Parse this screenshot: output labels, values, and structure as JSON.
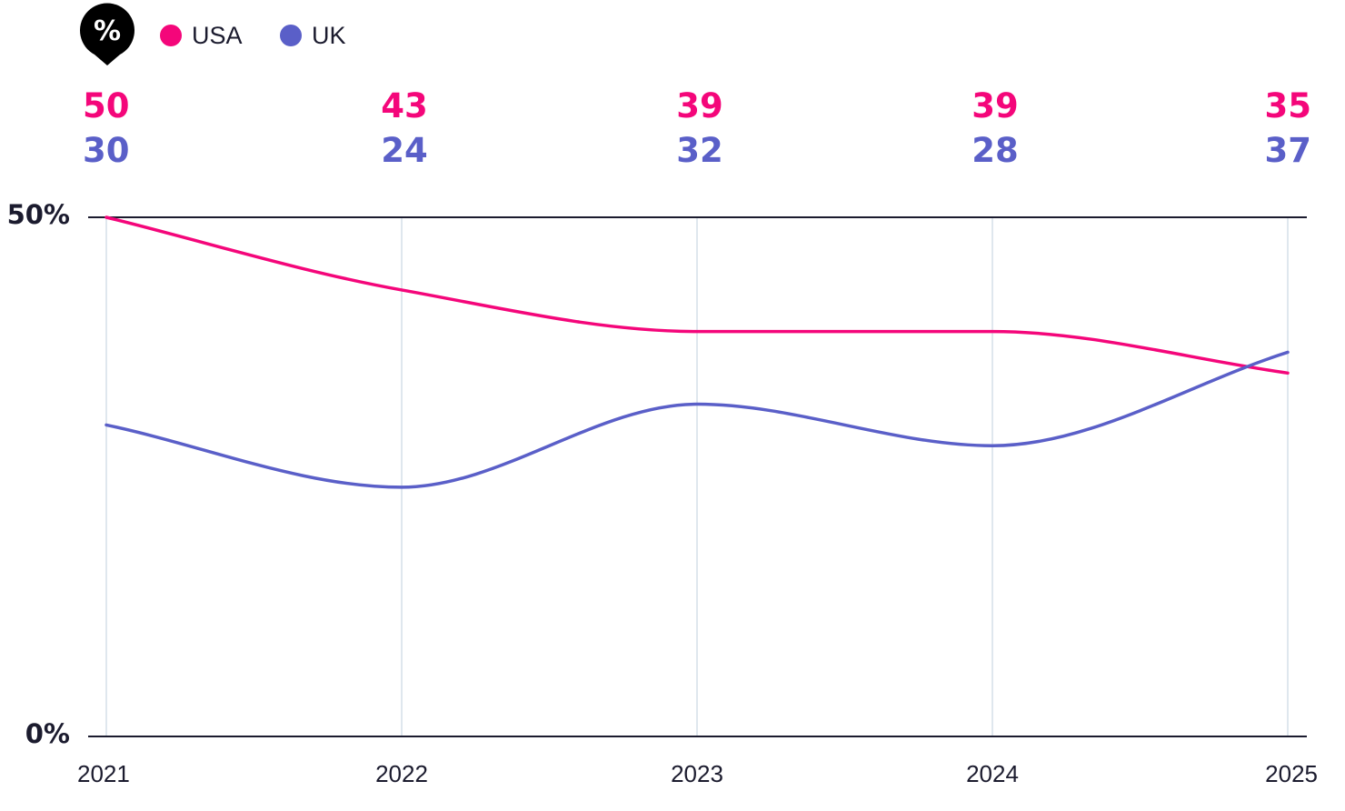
{
  "colors": {
    "usa": "#f4067a",
    "uk": "#5a5fc8",
    "axis": "#1b1b2e",
    "grid": "#dfe7ee",
    "badge": "#000000"
  },
  "badge": {
    "icon": "percent-pin-icon",
    "symbol": "%"
  },
  "chart_data": {
    "type": "line",
    "x": [
      "2021",
      "2022",
      "2023",
      "2024",
      "2025"
    ],
    "series": [
      {
        "name": "USA",
        "values": [
          50,
          43,
          39,
          39,
          35
        ]
      },
      {
        "name": "UK",
        "values": [
          30,
          24,
          32,
          28,
          37
        ]
      }
    ],
    "yticks": [
      "50%",
      "0%"
    ],
    "ylim": [
      0,
      50
    ],
    "legend": "top-left",
    "grid": true
  }
}
